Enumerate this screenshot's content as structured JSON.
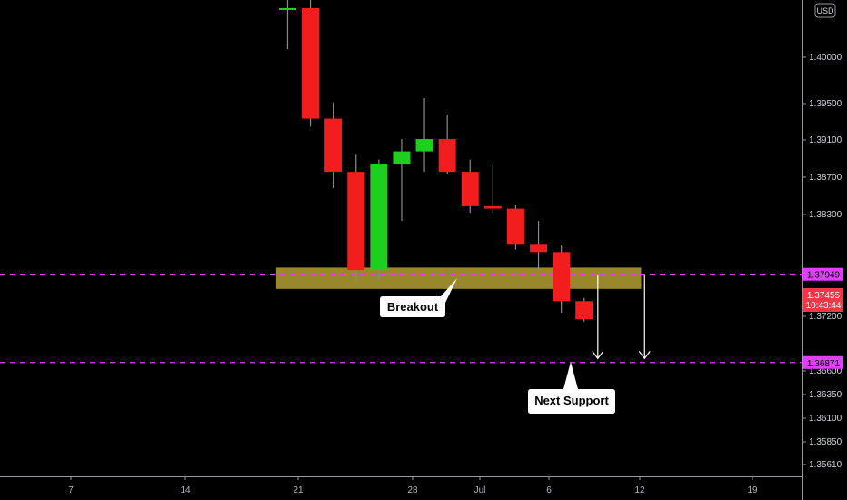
{
  "chart_data": {
    "type": "candlestick",
    "currency": "USD",
    "y_axis_labels": [
      "1.40000",
      "1.39500",
      "1.39100",
      "1.38700",
      "1.38300",
      "1.37200",
      "1.36600",
      "1.36350",
      "1.36100",
      "1.35850",
      "1.35610"
    ],
    "x_axis_labels": [
      "7",
      "14",
      "21",
      "28",
      "Jul",
      "6",
      "12",
      "19"
    ],
    "ylim": [
      1.3548,
      1.413
    ],
    "candles": [
      {
        "x": 9.5,
        "open": 1.412,
        "high": 1.413,
        "low": 1.407,
        "close": 1.412
      },
      {
        "x": 10.5,
        "open": 1.412,
        "high": 1.413,
        "low": 1.3975,
        "close": 1.3985
      },
      {
        "x": 11.5,
        "open": 1.3985,
        "high": 1.4005,
        "low": 1.39,
        "close": 1.392
      },
      {
        "x": 12.5,
        "open": 1.392,
        "high": 1.3942,
        "low": 1.3785,
        "close": 1.38
      },
      {
        "x": 13.5,
        "open": 1.38,
        "high": 1.3935,
        "low": 1.3787,
        "close": 1.393
      },
      {
        "x": 14.5,
        "open": 1.393,
        "high": 1.396,
        "low": 1.386,
        "close": 1.3945
      },
      {
        "x": 15.5,
        "open": 1.3945,
        "high": 1.401,
        "low": 1.392,
        "close": 1.396
      },
      {
        "x": 16.5,
        "open": 1.396,
        "high": 1.399,
        "low": 1.3918,
        "close": 1.392
      },
      {
        "x": 17.5,
        "open": 1.392,
        "high": 1.3935,
        "low": 1.387,
        "close": 1.3878
      },
      {
        "x": 18.5,
        "open": 1.3878,
        "high": 1.393,
        "low": 1.387,
        "close": 1.3875
      },
      {
        "x": 19.5,
        "open": 1.3875,
        "high": 1.388,
        "low": 1.3825,
        "close": 1.3832
      },
      {
        "x": 20.5,
        "open": 1.3832,
        "high": 1.386,
        "low": 1.38,
        "close": 1.3822
      },
      {
        "x": 21.5,
        "open": 1.3822,
        "high": 1.383,
        "low": 1.3748,
        "close": 1.3762
      },
      {
        "x": 22.5,
        "open": 1.3762,
        "high": 1.3766,
        "low": 1.3737,
        "close": 1.374
      }
    ],
    "x_ticks": [
      {
        "label": "7",
        "x": 0
      },
      {
        "label": "14",
        "x": 5
      },
      {
        "label": "21",
        "x": 10
      },
      {
        "label": "28",
        "x": 15
      },
      {
        "label": "Jul",
        "x": 18
      },
      {
        "label": "6",
        "x": 21
      },
      {
        "label": "12",
        "x": 25
      },
      {
        "label": "19",
        "x": 30
      }
    ],
    "lines": [
      {
        "name": "resistance",
        "price": 1.37949,
        "label": "1.37949",
        "color": "#e040fb"
      },
      {
        "name": "support",
        "price": 1.36871,
        "label": "1.36871",
        "color": "#e040fb"
      }
    ],
    "zone": {
      "x_start": 9.0,
      "x_end": 25.0,
      "price_top": 1.3803,
      "price_bottom": 1.3777,
      "color": "#b3a030"
    },
    "last_price": {
      "label": "1.37455",
      "countdown": "10:43:44",
      "price": 1.37455,
      "color": "#f23645"
    },
    "annotations": [
      {
        "text": "Breakout",
        "x": 17.8,
        "price": 1.3737
      },
      {
        "text": "Next Support",
        "x": 24.0,
        "price": 1.3635
      }
    ],
    "arrows": [
      {
        "x": 23.1,
        "from": 1.3794,
        "to": 1.3692
      },
      {
        "x": 25.15,
        "from": 1.3794,
        "to": 1.3692
      }
    ],
    "colors": {
      "up": "#1fcf1f",
      "down": "#f21d1d",
      "wick": "#8a8a8a",
      "text": "#d1d4dc"
    }
  }
}
